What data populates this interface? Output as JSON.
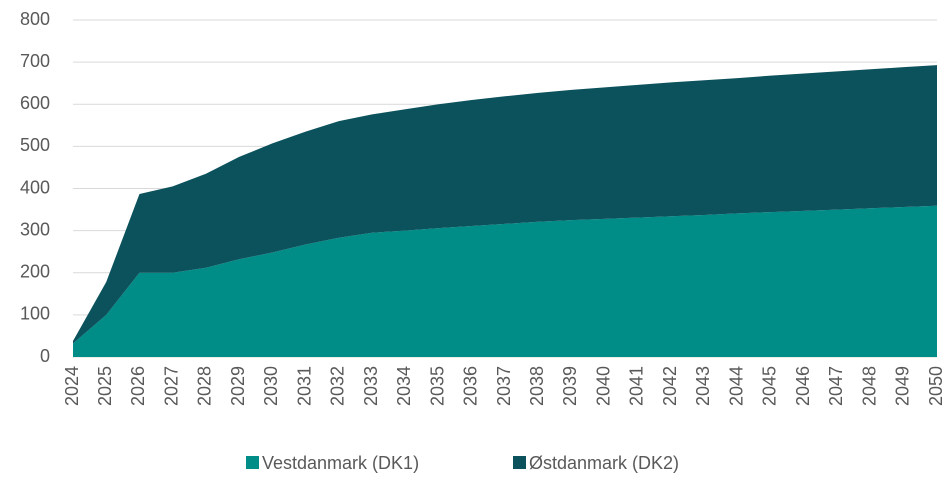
{
  "chart_data": {
    "type": "stacked_area",
    "categories": [
      "2024",
      "2025",
      "2026",
      "2027",
      "2028",
      "2029",
      "2030",
      "2031",
      "2032",
      "2033",
      "2034",
      "2035",
      "2036",
      "2037",
      "2038",
      "2039",
      "2040",
      "2041",
      "2042",
      "2043",
      "2044",
      "2045",
      "2046",
      "2047",
      "2048",
      "2049",
      "2050"
    ],
    "series": [
      {
        "name": "Vestdanmark (DK1)",
        "color": "#008c87",
        "values": [
          32,
          100,
          200,
          200,
          212,
          232,
          248,
          267,
          283,
          295,
          300,
          306,
          311,
          316,
          321,
          325,
          328,
          331,
          334,
          337,
          341,
          344,
          347,
          350,
          353,
          356,
          359
        ]
      },
      {
        "name": "Østdanmark (DK2)",
        "color": "#0c525c",
        "values": [
          6,
          78,
          187,
          205,
          223,
          243,
          259,
          268,
          277,
          281,
          288,
          294,
          299,
          303,
          306,
          309,
          312,
          315,
          318,
          320,
          321,
          324,
          326,
          328,
          330,
          332,
          334
        ]
      }
    ],
    "ylim": [
      0,
      800
    ],
    "yticks": [
      0,
      100,
      200,
      300,
      400,
      500,
      600,
      700,
      800
    ],
    "grid": true,
    "legend": "bottom"
  }
}
